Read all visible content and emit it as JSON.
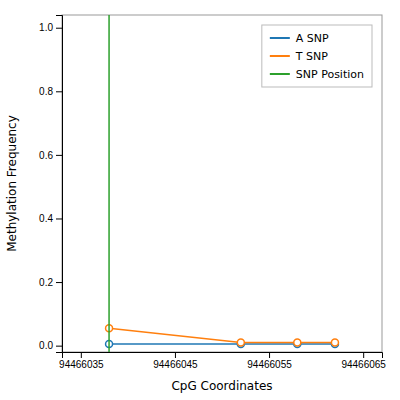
{
  "chart_data": {
    "type": "line",
    "xlabel": "CpG Coordinates",
    "ylabel": "Methylation Frequency",
    "x": [
      94466038,
      94466052,
      94466058,
      94466062
    ],
    "series": [
      {
        "name": "A SNP",
        "values": [
          0.005,
          0.005,
          0.005,
          0.005
        ],
        "marker": "circle"
      },
      {
        "name": "T SNP",
        "values": [
          0.055,
          0.01,
          0.01,
          0.01
        ],
        "marker": "circle"
      },
      {
        "name": "SNP Position",
        "type": "vline",
        "x": [
          94466038
        ]
      }
    ],
    "xlim": [
      94466033,
      94466067
    ],
    "ylim": [
      -0.02,
      1.04
    ],
    "xticks": [
      94466035,
      94466045,
      94466055,
      94466065
    ],
    "yticks": [
      {
        "value": 0.0,
        "label": "0.0"
      },
      0.2,
      0.4,
      0.6,
      0.8,
      {
        "value": 1.0,
        "label": "1.0"
      }
    ],
    "grid": false,
    "legend": "upper right"
  }
}
